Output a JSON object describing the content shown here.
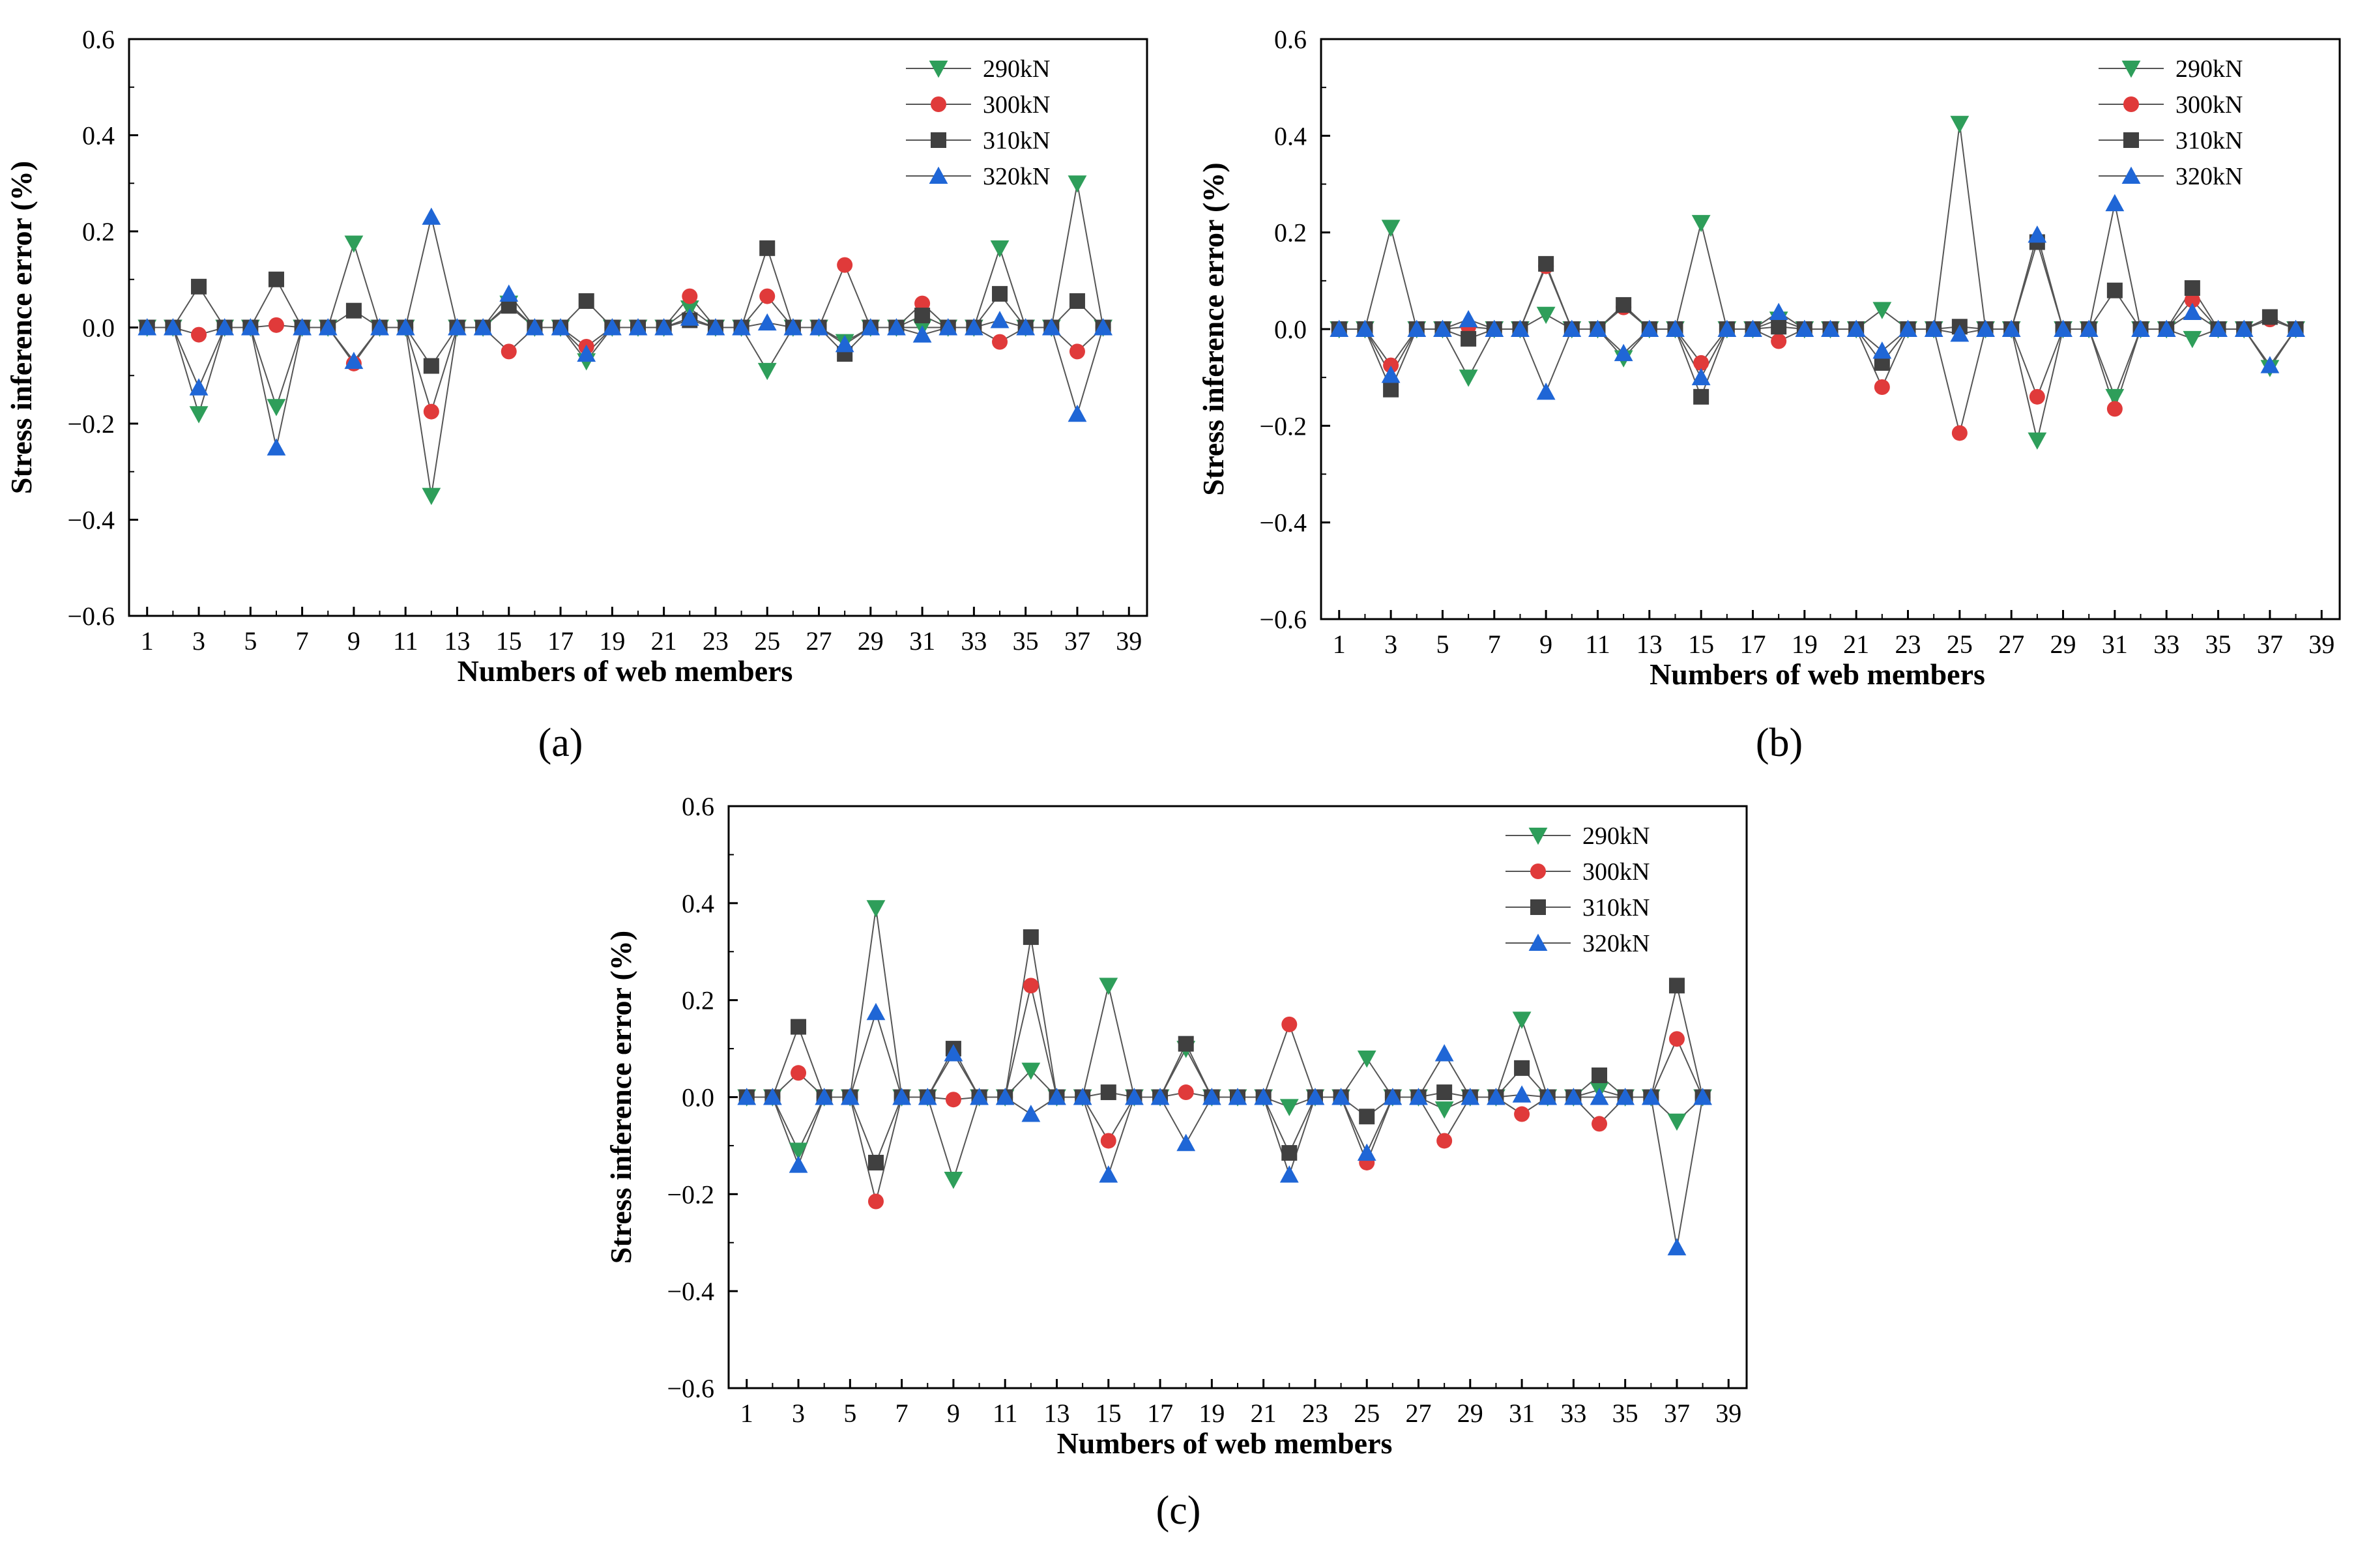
{
  "chart_data": [
    {
      "type": "line",
      "panel_label": "(a)",
      "xlabel": "Numbers of web members",
      "ylabel": "Stress inference error (%)",
      "ylim": [
        -0.6,
        0.6
      ],
      "yticks": [
        "0.6",
        "0.4",
        "0.2",
        "0.0",
        "−0.2",
        "−0.4",
        "−0.6"
      ],
      "xticks": [
        "1",
        "3",
        "5",
        "7",
        "9",
        "11",
        "13",
        "15",
        "17",
        "19",
        "21",
        "23",
        "25",
        "27",
        "29",
        "31",
        "33",
        "35",
        "37",
        "39"
      ],
      "legend_position": "top-right",
      "x": [
        1,
        2,
        3,
        4,
        5,
        6,
        7,
        8,
        9,
        10,
        11,
        12,
        13,
        14,
        15,
        16,
        17,
        18,
        19,
        20,
        21,
        22,
        23,
        24,
        25,
        26,
        27,
        28,
        29,
        30,
        31,
        32,
        33,
        34,
        35,
        36,
        37,
        38
      ],
      "series": [
        {
          "name": "290kN",
          "marker": "triangle-down",
          "color": "#2e9e5a",
          "values": [
            0,
            0,
            -0.18,
            0,
            0,
            -0.165,
            0,
            0,
            0.175,
            0,
            0,
            -0.35,
            0,
            0,
            0.05,
            0,
            0,
            -0.07,
            0,
            0,
            0,
            0.04,
            0,
            0,
            -0.09,
            0,
            0,
            -0.03,
            0,
            0,
            0,
            0,
            0,
            0.165,
            0,
            0,
            0.3,
            0
          ]
        },
        {
          "name": "300kN",
          "marker": "circle",
          "color": "#e03a3a",
          "values": [
            0,
            0,
            -0.015,
            0,
            0,
            0.005,
            0,
            0,
            -0.075,
            0,
            0,
            -0.175,
            0,
            0,
            -0.05,
            0,
            0,
            -0.04,
            0,
            0,
            0,
            0.065,
            0,
            0,
            0.065,
            0,
            0,
            0.13,
            0,
            0,
            0.05,
            0,
            0,
            -0.03,
            0,
            0,
            -0.05,
            0
          ]
        },
        {
          "name": "310kN",
          "marker": "square",
          "color": "#404040",
          "values": [
            0,
            0,
            0.085,
            0,
            0,
            0.1,
            0,
            0,
            0.035,
            0,
            0,
            -0.08,
            0,
            0,
            0.045,
            0,
            0,
            0.055,
            0,
            0,
            0,
            0.015,
            0,
            0,
            0.165,
            0,
            0,
            -0.055,
            0,
            0,
            0.025,
            0,
            0,
            0.07,
            0,
            0,
            0.055,
            0
          ]
        },
        {
          "name": "320kN",
          "marker": "triangle-up",
          "color": "#1f66d6",
          "values": [
            0,
            0,
            -0.125,
            0,
            0,
            -0.25,
            0,
            0,
            -0.07,
            0,
            0,
            0.23,
            0,
            0,
            0.07,
            0,
            0,
            -0.055,
            0,
            0,
            0,
            0.02,
            0,
            0,
            0.01,
            0,
            0,
            -0.035,
            0,
            0,
            -0.015,
            0,
            0,
            0.015,
            0,
            0,
            -0.18,
            0
          ]
        }
      ]
    },
    {
      "type": "line",
      "panel_label": "(b)",
      "xlabel": "Numbers of web members",
      "ylabel": "Stress inference error (%)",
      "ylim": [
        -0.6,
        0.6
      ],
      "yticks": [
        "0.6",
        "0.4",
        "0.2",
        "0.0",
        "−0.2",
        "−0.4",
        "−0.6"
      ],
      "xticks": [
        "1",
        "3",
        "5",
        "7",
        "9",
        "11",
        "13",
        "15",
        "17",
        "19",
        "21",
        "23",
        "25",
        "27",
        "29",
        "31",
        "33",
        "35",
        "37",
        "39"
      ],
      "legend_position": "top-right",
      "x": [
        1,
        2,
        3,
        4,
        5,
        6,
        7,
        8,
        9,
        10,
        11,
        12,
        13,
        14,
        15,
        16,
        17,
        18,
        19,
        20,
        21,
        22,
        23,
        24,
        25,
        26,
        27,
        28,
        29,
        30,
        31,
        32,
        33,
        34,
        35,
        36,
        37,
        38
      ],
      "series": [
        {
          "name": "290kN",
          "marker": "triangle-down",
          "color": "#2e9e5a",
          "values": [
            0,
            0,
            0.21,
            0,
            0,
            -0.1,
            0,
            0,
            0.03,
            0,
            0,
            -0.06,
            0,
            0,
            0.22,
            0,
            0,
            0.02,
            0,
            0,
            0,
            0.04,
            0,
            0,
            0.425,
            0,
            0,
            -0.23,
            0,
            0,
            -0.14,
            0,
            0,
            -0.02,
            0,
            0,
            -0.08,
            0
          ]
        },
        {
          "name": "300kN",
          "marker": "circle",
          "color": "#e03a3a",
          "values": [
            0,
            0,
            -0.075,
            0,
            0,
            0.005,
            0,
            0,
            0.13,
            0,
            0,
            0.045,
            0,
            0,
            -0.07,
            0,
            0,
            -0.025,
            0,
            0,
            0,
            -0.12,
            0,
            0,
            -0.215,
            0,
            0,
            -0.14,
            0,
            0,
            -0.165,
            0,
            0,
            0.06,
            0,
            0,
            0.02,
            0
          ]
        },
        {
          "name": "310kN",
          "marker": "square",
          "color": "#404040",
          "values": [
            0,
            0,
            -0.125,
            0,
            0,
            -0.02,
            0,
            0,
            0.135,
            0,
            0,
            0.05,
            0,
            0,
            -0.14,
            0,
            0,
            0.005,
            0,
            0,
            0,
            -0.07,
            0,
            0,
            0.005,
            0,
            0,
            0.18,
            0,
            0,
            0.08,
            0,
            0,
            0.085,
            0,
            0,
            0.025,
            0
          ]
        },
        {
          "name": "320kN",
          "marker": "triangle-up",
          "color": "#1f66d6",
          "values": [
            0,
            0,
            -0.095,
            0,
            0,
            0.02,
            0,
            0,
            -0.13,
            0,
            0,
            -0.05,
            0,
            0,
            -0.1,
            0,
            0,
            0.035,
            0,
            0,
            0,
            -0.045,
            0,
            0,
            -0.01,
            0,
            0,
            0.195,
            0,
            0,
            0.26,
            0,
            0,
            0.035,
            0,
            0,
            -0.075,
            0
          ]
        }
      ]
    },
    {
      "type": "line",
      "panel_label": "(c)",
      "xlabel": "Numbers of web members",
      "ylabel": "Stress inference error (%)",
      "ylim": [
        -0.6,
        0.6
      ],
      "yticks": [
        "0.6",
        "0.4",
        "0.2",
        "0.0",
        "−0.2",
        "−0.4",
        "−0.6"
      ],
      "xticks": [
        "1",
        "3",
        "5",
        "7",
        "9",
        "11",
        "13",
        "15",
        "17",
        "19",
        "21",
        "23",
        "25",
        "27",
        "29",
        "31",
        "33",
        "35",
        "37",
        "39"
      ],
      "legend_position": "top-right",
      "x": [
        1,
        2,
        3,
        4,
        5,
        6,
        7,
        8,
        9,
        10,
        11,
        12,
        13,
        14,
        15,
        16,
        17,
        18,
        19,
        20,
        21,
        22,
        23,
        24,
        25,
        26,
        27,
        28,
        29,
        30,
        31,
        32,
        33,
        34,
        35,
        36,
        37,
        38
      ],
      "series": [
        {
          "name": "290kN",
          "marker": "triangle-down",
          "color": "#2e9e5a",
          "values": [
            0,
            0,
            -0.11,
            0,
            0,
            0.39,
            0,
            0,
            -0.17,
            0,
            0,
            0.055,
            0,
            0,
            0.23,
            0,
            0,
            0.1,
            0,
            0,
            0,
            -0.02,
            0,
            0,
            0.08,
            0,
            0,
            -0.025,
            0,
            0,
            0.16,
            0,
            0,
            0.015,
            0,
            0,
            -0.05,
            0
          ]
        },
        {
          "name": "300kN",
          "marker": "circle",
          "color": "#e03a3a",
          "values": [
            0,
            0,
            0.05,
            0,
            0,
            -0.215,
            0,
            0,
            -0.005,
            0,
            0,
            0.23,
            0,
            0,
            -0.09,
            0,
            0,
            0.01,
            0,
            0,
            0,
            0.15,
            0,
            0,
            -0.135,
            0,
            0,
            -0.09,
            0,
            0,
            -0.035,
            0,
            0,
            -0.055,
            0,
            0,
            0.12,
            0
          ]
        },
        {
          "name": "310kN",
          "marker": "square",
          "color": "#404040",
          "values": [
            0,
            0,
            0.145,
            0,
            0,
            -0.135,
            0,
            0,
            0.1,
            0,
            0,
            0.33,
            0,
            0,
            0.01,
            0,
            0,
            0.11,
            0,
            0,
            0,
            -0.115,
            0,
            0,
            -0.04,
            0,
            0,
            0.01,
            0,
            0,
            0.06,
            0,
            0,
            0.045,
            0,
            0,
            0.23,
            0
          ]
        },
        {
          "name": "320kN",
          "marker": "triangle-up",
          "color": "#1f66d6",
          "values": [
            0,
            0,
            -0.14,
            0,
            0,
            0.175,
            0,
            0,
            0.09,
            0,
            0,
            -0.035,
            0,
            0,
            -0.16,
            0,
            0,
            -0.095,
            0,
            0,
            0,
            -0.16,
            0,
            0,
            -0.115,
            0,
            0,
            0.09,
            0,
            0,
            0.005,
            0,
            0,
            0.0,
            0,
            0,
            -0.31,
            0
          ]
        }
      ]
    }
  ]
}
